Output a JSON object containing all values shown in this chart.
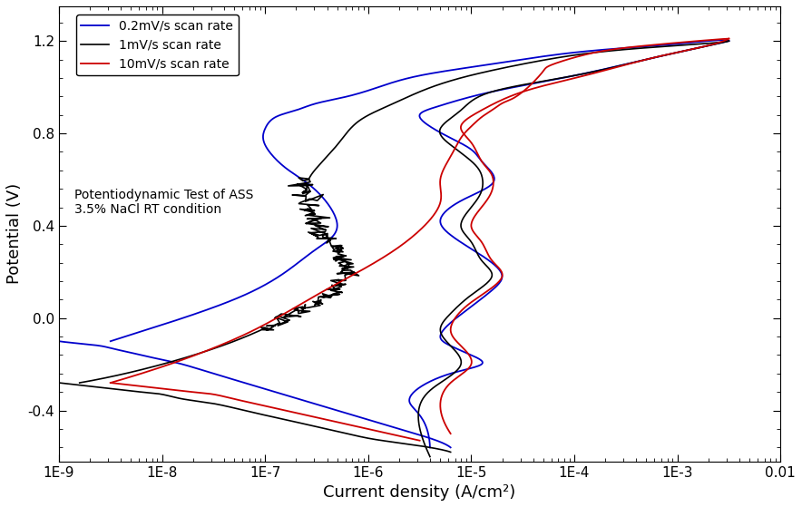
{
  "xlabel": "Current density (A/cm²)",
  "ylabel": "Potential (V)",
  "legend_labels": [
    "0.2mV/s scan rate",
    "1mV/s scan rate",
    "10mV/s scan rate"
  ],
  "legend_colors": [
    "#0000cc",
    "#000000",
    "#cc0000"
  ],
  "annotation_line1": "Potentiodynamic Test of ASS",
  "annotation_line2": "3.5% NaCl RT condition",
  "background_color": "#ffffff",
  "tick_fontsize": 11,
  "label_fontsize": 13,
  "blue_cathodic_logI": [
    -9.0,
    -8.8,
    -8.6,
    -8.5,
    -8.4,
    -8.3,
    -8.2,
    -8.0,
    -7.8,
    -7.5,
    -7.2,
    -6.9,
    -6.6,
    -6.3,
    -6.0,
    -5.7,
    -5.4,
    -5.2
  ],
  "blue_cathodic_V": [
    -0.1,
    -0.11,
    -0.12,
    -0.13,
    -0.14,
    -0.15,
    -0.16,
    -0.18,
    -0.2,
    -0.24,
    -0.28,
    -0.32,
    -0.36,
    -0.4,
    -0.44,
    -0.48,
    -0.52,
    -0.56
  ],
  "blue_anodic_logI": [
    -8.5,
    -7.8,
    -7.2,
    -6.8,
    -6.5,
    -6.3,
    -6.5,
    -6.8,
    -7.0,
    -7.0,
    -6.9,
    -6.7,
    -6.5,
    -6.2,
    -5.9,
    -5.5,
    -4.8,
    -4.0,
    -3.2,
    -2.7,
    -2.5
  ],
  "blue_anodic_V": [
    -0.1,
    0.0,
    0.1,
    0.2,
    0.3,
    0.4,
    0.55,
    0.65,
    0.75,
    0.82,
    0.87,
    0.9,
    0.93,
    0.96,
    1.0,
    1.05,
    1.1,
    1.15,
    1.18,
    1.2,
    1.2
  ],
  "blue_return_logI": [
    -2.5,
    -2.8,
    -3.3,
    -4.0,
    -4.8,
    -5.3,
    -5.5,
    -5.4,
    -5.2,
    -5.0,
    -4.9,
    -4.8,
    -4.8,
    -5.0,
    -5.2,
    -5.3,
    -5.2,
    -5.0,
    -4.8,
    -4.7,
    -4.8,
    -5.0,
    -5.2,
    -5.3,
    -5.2,
    -5.0,
    -4.9,
    -5.2,
    -5.5,
    -5.6,
    -5.5,
    -5.4
  ],
  "blue_return_V": [
    1.2,
    1.17,
    1.12,
    1.05,
    0.98,
    0.92,
    0.88,
    0.83,
    0.78,
    0.73,
    0.68,
    0.63,
    0.58,
    0.53,
    0.48,
    0.42,
    0.36,
    0.3,
    0.24,
    0.18,
    0.12,
    0.05,
    -0.02,
    -0.08,
    -0.12,
    -0.16,
    -0.2,
    -0.24,
    -0.3,
    -0.36,
    -0.42,
    -0.56
  ],
  "black_cathodic_logI": [
    -9.0,
    -8.8,
    -8.6,
    -8.4,
    -8.2,
    -8.0,
    -7.8,
    -7.5,
    -7.2,
    -6.9,
    -6.6,
    -6.3,
    -6.0,
    -5.7,
    -5.4,
    -5.2
  ],
  "black_cathodic_V": [
    -0.28,
    -0.29,
    -0.3,
    -0.31,
    -0.32,
    -0.33,
    -0.35,
    -0.37,
    -0.4,
    -0.43,
    -0.46,
    -0.49,
    -0.52,
    -0.54,
    -0.56,
    -0.58
  ],
  "black_anodic_logI": [
    -8.8,
    -8.0,
    -7.3,
    -6.8,
    -6.4,
    -6.2,
    -6.3,
    -6.5,
    -6.6,
    -6.5,
    -6.3,
    -6.1,
    -5.8,
    -5.5,
    -5.1,
    -4.5,
    -3.8,
    -3.0,
    -2.5
  ],
  "black_anodic_V": [
    -0.28,
    -0.2,
    -0.1,
    0.0,
    0.1,
    0.2,
    0.3,
    0.4,
    0.55,
    0.65,
    0.75,
    0.85,
    0.92,
    0.98,
    1.04,
    1.1,
    1.15,
    1.18,
    1.2
  ],
  "black_return_logI": [
    -2.5,
    -2.8,
    -3.3,
    -4.0,
    -4.8,
    -5.1,
    -5.3,
    -5.2,
    -5.0,
    -4.9,
    -4.9,
    -5.0,
    -5.1,
    -5.0,
    -4.9,
    -4.8,
    -5.0,
    -5.2,
    -5.3,
    -5.2,
    -5.1,
    -5.3,
    -5.5,
    -5.4
  ],
  "black_return_V": [
    1.2,
    1.17,
    1.12,
    1.05,
    0.98,
    0.9,
    0.82,
    0.75,
    0.68,
    0.62,
    0.55,
    0.48,
    0.4,
    0.33,
    0.25,
    0.18,
    0.1,
    0.02,
    -0.05,
    -0.12,
    -0.2,
    -0.28,
    -0.38,
    -0.6
  ],
  "red_cathodic_logI": [
    -8.5,
    -8.3,
    -8.1,
    -7.9,
    -7.7,
    -7.5,
    -7.3,
    -7.1,
    -6.9,
    -6.7,
    -6.5,
    -6.3,
    -6.1,
    -5.9,
    -5.7,
    -5.5
  ],
  "red_cathodic_V": [
    -0.28,
    -0.29,
    -0.3,
    -0.31,
    -0.32,
    -0.33,
    -0.35,
    -0.37,
    -0.39,
    -0.41,
    -0.43,
    -0.45,
    -0.47,
    -0.49,
    -0.51,
    -0.53
  ],
  "red_anodic_logI": [
    -8.5,
    -7.8,
    -7.1,
    -6.5,
    -5.9,
    -5.5,
    -5.3,
    -5.3,
    -5.2,
    -5.1,
    -5.0,
    -4.9,
    -4.8,
    -4.7,
    -4.6,
    -4.5,
    -4.4,
    -4.3,
    -4.2,
    -3.8,
    -3.3,
    -2.8,
    -2.5
  ],
  "red_anodic_V": [
    -0.28,
    -0.18,
    -0.05,
    0.1,
    0.25,
    0.38,
    0.5,
    0.6,
    0.7,
    0.78,
    0.83,
    0.87,
    0.9,
    0.93,
    0.95,
    0.98,
    1.02,
    1.07,
    1.1,
    1.15,
    1.18,
    1.2,
    1.21
  ],
  "red_return_logI": [
    -2.5,
    -2.8,
    -3.3,
    -3.9,
    -4.5,
    -4.9,
    -5.1,
    -5.0,
    -4.9,
    -4.8,
    -4.8,
    -4.9,
    -5.0,
    -4.9,
    -4.8,
    -4.7,
    -4.9,
    -5.1,
    -5.2,
    -5.1,
    -5.0,
    -5.2,
    -5.3,
    -5.2
  ],
  "red_return_V": [
    1.21,
    1.17,
    1.12,
    1.05,
    0.98,
    0.9,
    0.83,
    0.76,
    0.68,
    0.62,
    0.55,
    0.48,
    0.4,
    0.33,
    0.25,
    0.18,
    0.1,
    0.03,
    -0.05,
    -0.12,
    -0.2,
    -0.28,
    -0.38,
    -0.5
  ]
}
